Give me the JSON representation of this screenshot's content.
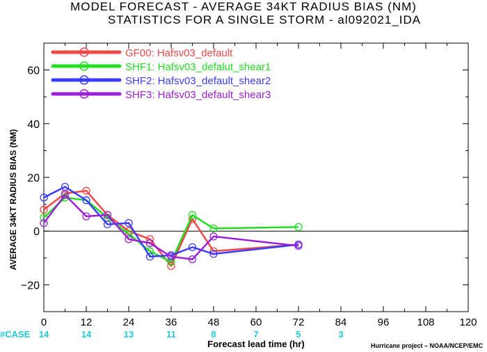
{
  "chart_data": {
    "type": "line",
    "title": "MODEL FORECAST - AVERAGE 34KT RADIUS BIAS (NM)",
    "subtitle": "STATISTICS FOR A SINGLE STORM - al092021_IDA",
    "xlabel": "Forecast lead time (hr)",
    "ylabel": "AVERAGE 34KT RADIUS BIAS (NM)",
    "xlim": [
      0,
      120
    ],
    "ylim": [
      -30,
      70
    ],
    "x_ticks": [
      0,
      12,
      24,
      36,
      48,
      60,
      72,
      84,
      96,
      108,
      120
    ],
    "y_ticks": [
      -20,
      0,
      20,
      40,
      60
    ],
    "y_tick_labels": [
      "−20",
      "0",
      "20",
      "40",
      "60"
    ],
    "zero_line": true,
    "grid": false,
    "legend_position": "top-left",
    "case_label": "#CASE",
    "case_counts": [
      {
        "x": 0,
        "n": "14"
      },
      {
        "x": 12,
        "n": "14"
      },
      {
        "x": 24,
        "n": "13"
      },
      {
        "x": 36,
        "n": "11"
      },
      {
        "x": 48,
        "n": "8"
      },
      {
        "x": 60,
        "n": "7"
      },
      {
        "x": 72,
        "n": "5"
      },
      {
        "x": 84,
        "n": "3"
      }
    ],
    "series": [
      {
        "name": "GF00: Hafsv03_default",
        "color": "#f04848",
        "points": [
          [
            0,
            8
          ],
          [
            6,
            14
          ],
          [
            12,
            15
          ],
          [
            18,
            6
          ],
          [
            24,
            0
          ],
          [
            30,
            -3
          ],
          [
            36,
            -13
          ],
          [
            42,
            4.5
          ],
          [
            48,
            -7.5
          ],
          [
            72,
            -5
          ]
        ]
      },
      {
        "name": "SHF1: Hafsv03_defalut_shear1",
        "color": "#22dd22",
        "points": [
          [
            0,
            5
          ],
          [
            6,
            12.5
          ],
          [
            12,
            11.5
          ],
          [
            18,
            5
          ],
          [
            24,
            -1
          ],
          [
            30,
            -7.5
          ],
          [
            36,
            -11.5
          ],
          [
            42,
            6
          ],
          [
            48,
            1
          ],
          [
            72,
            1.5
          ]
        ]
      },
      {
        "name": "SHF2: Hafsv03_default_shear2",
        "color": "#3c3cff",
        "points": [
          [
            0,
            12.5
          ],
          [
            6,
            16.5
          ],
          [
            12,
            11.5
          ],
          [
            18,
            2.5
          ],
          [
            24,
            3
          ],
          [
            30,
            -9.5
          ],
          [
            36,
            -9
          ],
          [
            42,
            -6
          ],
          [
            48,
            -8.5
          ],
          [
            72,
            -5
          ]
        ]
      },
      {
        "name": "SHF3: Hafsv03_default_shear3",
        "color": "#9b20d8",
        "points": [
          [
            0,
            3
          ],
          [
            6,
            13.5
          ],
          [
            12,
            5.5
          ],
          [
            18,
            6
          ],
          [
            24,
            -3
          ],
          [
            30,
            -4.5
          ],
          [
            36,
            -9.5
          ],
          [
            42,
            -10.5
          ],
          [
            48,
            -2
          ],
          [
            72,
            -5.5
          ]
        ]
      }
    ]
  },
  "footer": {
    "credit": "Hurricane project – NOAA/NCEP/EMC"
  }
}
